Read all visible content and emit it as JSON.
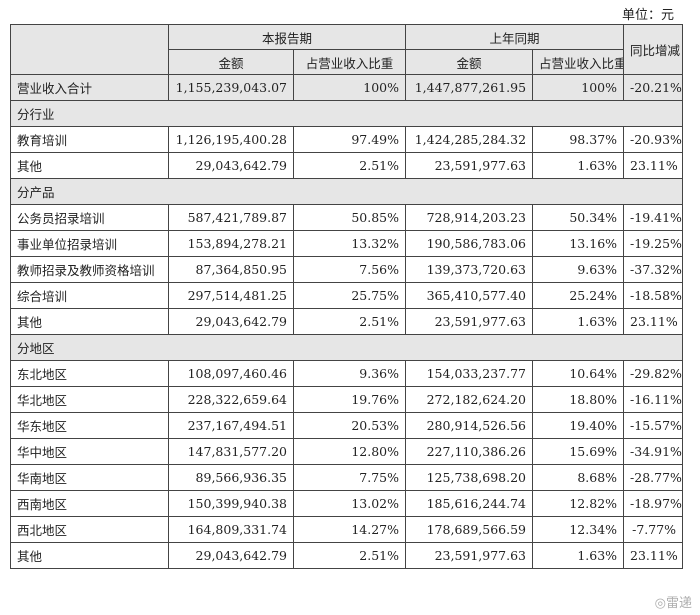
{
  "unit_label": "单位：元",
  "headers": {
    "period_current": "本报告期",
    "period_last": "上年同期",
    "yoy": "同比增减",
    "amount": "金额",
    "ratio": "占营业收入比重"
  },
  "total": {
    "name": "营业收入合计",
    "amt1": "1,155,239,043.07",
    "pct1": "100%",
    "amt2": "1,447,877,261.95",
    "pct2": "100%",
    "yoy": "-20.21%"
  },
  "sections": [
    {
      "title": "分行业",
      "rows": [
        {
          "name": "教育培训",
          "amt1": "1,126,195,400.28",
          "pct1": "97.49%",
          "amt2": "1,424,285,284.32",
          "pct2": "98.37%",
          "yoy": "-20.93%"
        },
        {
          "name": "其他",
          "amt1": "29,043,642.79",
          "pct1": "2.51%",
          "amt2": "23,591,977.63",
          "pct2": "1.63%",
          "yoy": "23.11%"
        }
      ]
    },
    {
      "title": "分产品",
      "rows": [
        {
          "name": "公务员招录培训",
          "amt1": "587,421,789.87",
          "pct1": "50.85%",
          "amt2": "728,914,203.23",
          "pct2": "50.34%",
          "yoy": "-19.41%"
        },
        {
          "name": "事业单位招录培训",
          "amt1": "153,894,278.21",
          "pct1": "13.32%",
          "amt2": "190,586,783.06",
          "pct2": "13.16%",
          "yoy": "-19.25%"
        },
        {
          "name": "教师招录及教师资格培训",
          "amt1": "87,364,850.95",
          "pct1": "7.56%",
          "amt2": "139,373,720.63",
          "pct2": "9.63%",
          "yoy": "-37.32%"
        },
        {
          "name": "综合培训",
          "amt1": "297,514,481.25",
          "pct1": "25.75%",
          "amt2": "365,410,577.40",
          "pct2": "25.24%",
          "yoy": "-18.58%"
        },
        {
          "name": "其他",
          "amt1": "29,043,642.79",
          "pct1": "2.51%",
          "amt2": "23,591,977.63",
          "pct2": "1.63%",
          "yoy": "23.11%"
        }
      ]
    },
    {
      "title": "分地区",
      "rows": [
        {
          "name": "东北地区",
          "amt1": "108,097,460.46",
          "pct1": "9.36%",
          "amt2": "154,033,237.77",
          "pct2": "10.64%",
          "yoy": "-29.82%"
        },
        {
          "name": "华北地区",
          "amt1": "228,322,659.64",
          "pct1": "19.76%",
          "amt2": "272,182,624.20",
          "pct2": "18.80%",
          "yoy": "-16.11%"
        },
        {
          "name": "华东地区",
          "amt1": "237,167,494.51",
          "pct1": "20.53%",
          "amt2": "280,914,526.56",
          "pct2": "19.40%",
          "yoy": "-15.57%"
        },
        {
          "name": "华中地区",
          "amt1": "147,831,577.20",
          "pct1": "12.80%",
          "amt2": "227,110,386.26",
          "pct2": "15.69%",
          "yoy": "-34.91%"
        },
        {
          "name": "华南地区",
          "amt1": "89,566,936.35",
          "pct1": "7.75%",
          "amt2": "125,738,698.20",
          "pct2": "8.68%",
          "yoy": "-28.77%"
        },
        {
          "name": "西南地区",
          "amt1": "150,399,940.38",
          "pct1": "13.02%",
          "amt2": "185,616,244.74",
          "pct2": "12.82%",
          "yoy": "-18.97%"
        },
        {
          "name": "西北地区",
          "amt1": "164,809,331.74",
          "pct1": "14.27%",
          "amt2": "178,689,566.59",
          "pct2": "12.34%",
          "yoy": "-7.77%"
        },
        {
          "name": "其他",
          "amt1": "29,043,642.79",
          "pct1": "2.51%",
          "amt2": "23,591,977.63",
          "pct2": "1.63%",
          "yoy": "23.11%"
        }
      ]
    }
  ],
  "watermark": "雷递"
}
